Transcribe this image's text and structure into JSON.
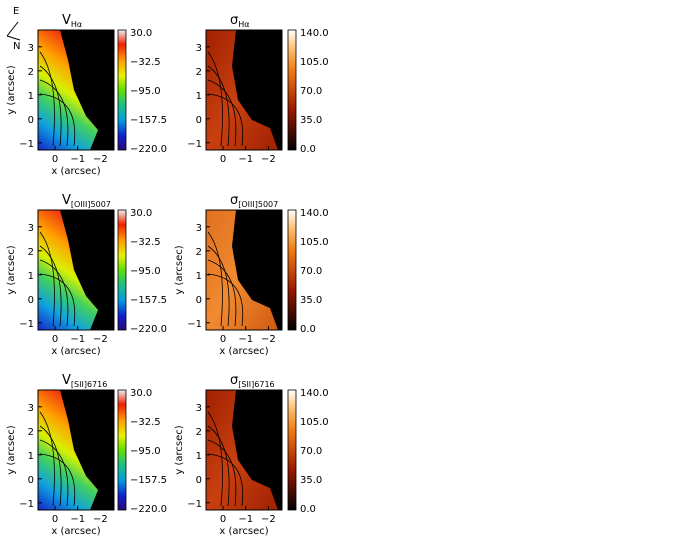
{
  "compass": {
    "east": "E",
    "north": "N"
  },
  "panels": [
    {
      "id": "v-halpha",
      "title_main": "V",
      "title_sub": "Hα",
      "kind": "velocity",
      "xlabel": "x (arcsec)",
      "ylabel": "y (arcsec)"
    },
    {
      "id": "sigma-halpha",
      "title_main": "σ",
      "title_sub": "Hα",
      "kind": "dispersion",
      "xlabel": "",
      "ylabel": ""
    },
    {
      "id": "v-oiii",
      "title_main": "V",
      "title_sub": "[OIII]5007",
      "kind": "velocity",
      "xlabel": "x (arcsec)",
      "ylabel": "y (arcsec)"
    },
    {
      "id": "sigma-oiii",
      "title_main": "σ",
      "title_sub": "[OIII]5007",
      "kind": "dispersion",
      "xlabel": "x (arcsec)",
      "ylabel": "y (arcsec)"
    },
    {
      "id": "v-sii",
      "title_main": "V",
      "title_sub": "[SII]6716",
      "kind": "velocity",
      "xlabel": "x (arcsec)",
      "ylabel": "y (arcsec)"
    },
    {
      "id": "sigma-sii",
      "title_main": "σ",
      "title_sub": "[SII]6716",
      "kind": "dispersion",
      "xlabel": "x (arcsec)",
      "ylabel": "y (arcsec)"
    }
  ],
  "colorbars": {
    "velocity": {
      "ticks": [
        "30.0",
        "−32.5",
        "−95.0",
        "−157.5",
        "−220.0"
      ],
      "range": [
        -220,
        30
      ]
    },
    "dispersion": {
      "ticks": [
        "140.0",
        "105.0",
        "70.0",
        "35.0",
        "0.0"
      ],
      "range": [
        0,
        140
      ]
    }
  },
  "axes": {
    "x_ticks": [
      "0",
      "−1",
      "−2"
    ],
    "x_values": [
      0,
      -1,
      -2
    ],
    "xlim": [
      0.75,
      -2.6
    ],
    "y_ticks": [
      "3",
      "2",
      "1",
      "0",
      "−1"
    ],
    "y_values": [
      3,
      2,
      1,
      0,
      -1
    ],
    "ylim": [
      -1.3,
      3.7
    ]
  },
  "chart_data": [
    {
      "type": "heatmap",
      "title": "V Hα",
      "xlabel": "x (arcsec)",
      "ylabel": "y (arcsec)",
      "xlim": [
        0.75,
        -2.6
      ],
      "ylim": [
        -1.3,
        3.7
      ],
      "colorbar_range": [
        -220,
        30
      ],
      "colormap": "rainbow"
    },
    {
      "type": "heatmap",
      "title": "σ Hα",
      "xlim": [
        0.75,
        -2.6
      ],
      "ylim": [
        -1.3,
        3.7
      ],
      "colorbar_range": [
        0,
        140
      ],
      "colormap": "heat"
    },
    {
      "type": "heatmap",
      "title": "V [OIII]5007",
      "xlabel": "x (arcsec)",
      "ylabel": "y (arcsec)",
      "xlim": [
        0.75,
        -2.6
      ],
      "ylim": [
        -1.3,
        3.7
      ],
      "colorbar_range": [
        -220,
        30
      ],
      "colormap": "rainbow"
    },
    {
      "type": "heatmap",
      "title": "σ [OIII]5007",
      "xlabel": "x (arcsec)",
      "ylabel": "y (arcsec)",
      "xlim": [
        0.75,
        -2.6
      ],
      "ylim": [
        -1.3,
        3.7
      ],
      "colorbar_range": [
        0,
        140
      ],
      "colormap": "heat"
    },
    {
      "type": "heatmap",
      "title": "V [SII]6716",
      "xlabel": "x (arcsec)",
      "ylabel": "y (arcsec)",
      "xlim": [
        0.75,
        -2.6
      ],
      "ylim": [
        -1.3,
        3.7
      ],
      "colorbar_range": [
        -220,
        30
      ],
      "colormap": "rainbow"
    },
    {
      "type": "heatmap",
      "title": "σ [SII]6716",
      "xlabel": "x (arcsec)",
      "ylabel": "y (arcsec)",
      "xlim": [
        0.75,
        -2.6
      ],
      "ylim": [
        -1.3,
        3.7
      ],
      "colorbar_range": [
        0,
        140
      ],
      "colormap": "heat"
    }
  ]
}
